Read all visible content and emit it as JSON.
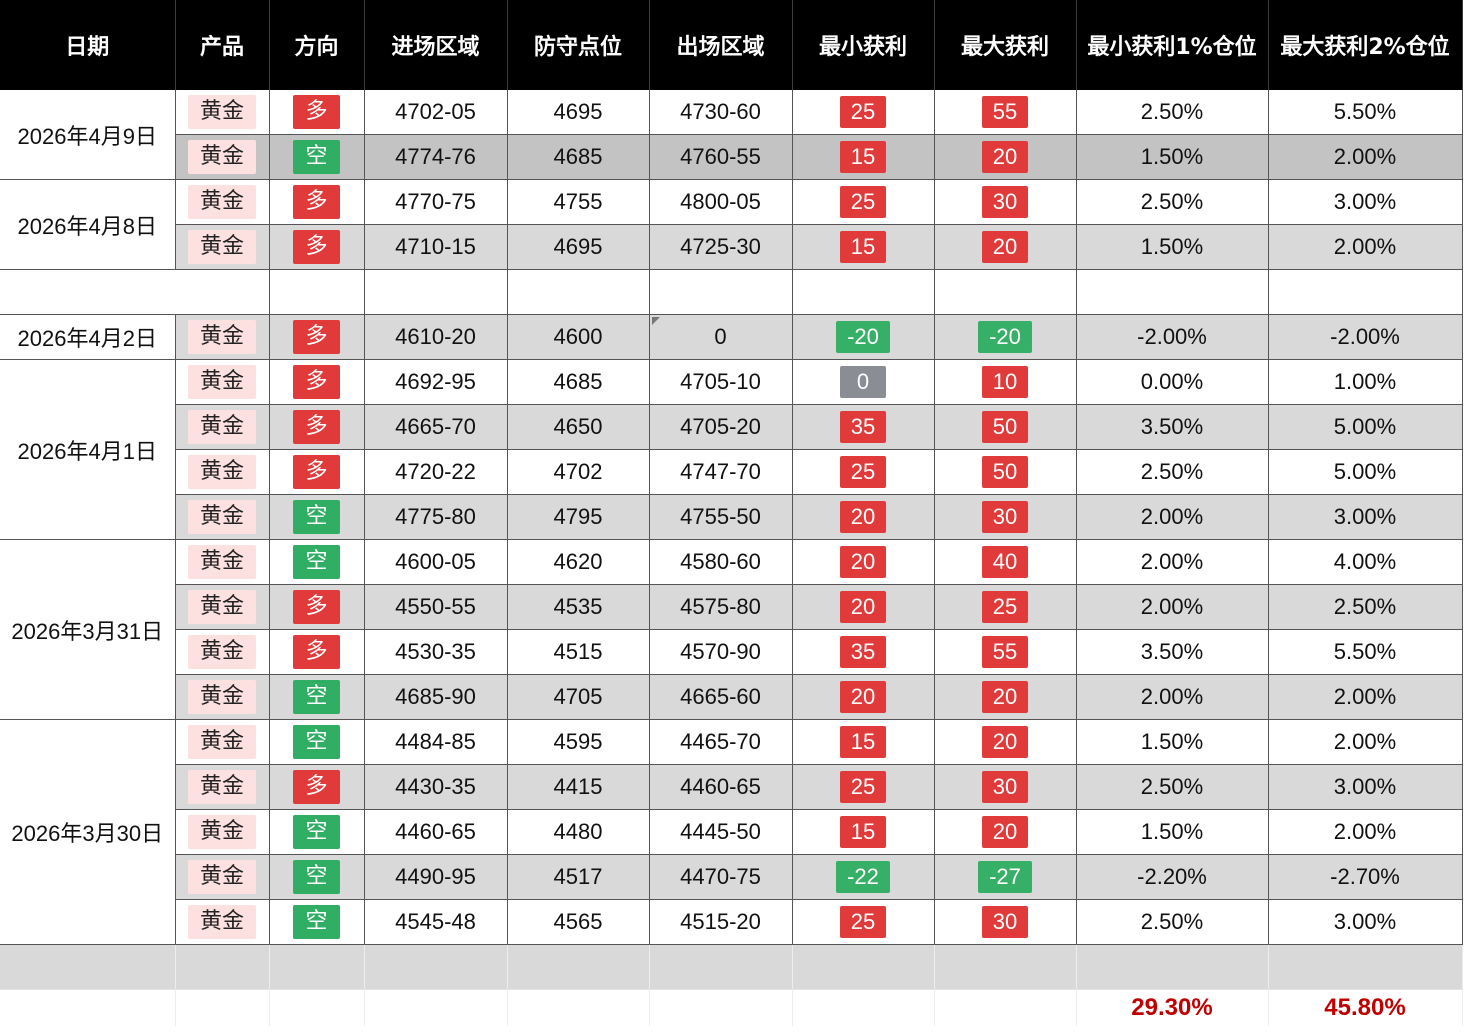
{
  "columns": [
    "日期",
    "产品",
    "方向",
    "进场区域",
    "防守点位",
    "出场区域",
    "最小获利",
    "最大获利",
    "最小获利1%仓位",
    "最大获利2%仓位"
  ],
  "colors": {
    "positive": "#e03a3a",
    "negative": "#36b066",
    "zero": "#8a8d94",
    "long": "#e03a3a",
    "short": "#2fae64",
    "product_bg": "#fde0e0",
    "total": "#c00000"
  },
  "groups": [
    {
      "date": "2026年4月9日",
      "rows": [
        {
          "product": "黄金",
          "direction": "多",
          "entry": "4702-05",
          "stop": "4695",
          "exit": "4730-60",
          "min": "25",
          "max": "55",
          "min_pct": "2.50%",
          "max_pct": "5.50%"
        },
        {
          "product": "黄金",
          "direction": "空",
          "entry": "4774-76",
          "stop": "4685",
          "exit": "4760-55",
          "min": "15",
          "max": "20",
          "min_pct": "1.50%",
          "max_pct": "2.00%"
        }
      ]
    },
    {
      "date": "2026年4月8日",
      "rows": [
        {
          "product": "黄金",
          "direction": "多",
          "entry": "4770-75",
          "stop": "4755",
          "exit": "4800-05",
          "min": "25",
          "max": "30",
          "min_pct": "2.50%",
          "max_pct": "3.00%"
        },
        {
          "product": "黄金",
          "direction": "多",
          "entry": "4710-15",
          "stop": "4695",
          "exit": "4725-30",
          "min": "15",
          "max": "20",
          "min_pct": "1.50%",
          "max_pct": "2.00%"
        }
      ]
    },
    {
      "date": "",
      "empty": true,
      "rows": []
    },
    {
      "date": "2026年4月2日",
      "rows": [
        {
          "product": "黄金",
          "direction": "多",
          "entry": "4610-20",
          "stop": "4600",
          "exit": "0",
          "min": "-20",
          "max": "-20",
          "min_pct": "-2.00%",
          "max_pct": "-2.00%"
        }
      ]
    },
    {
      "date": "2026年4月1日",
      "rows": [
        {
          "product": "黄金",
          "direction": "多",
          "entry": "4692-95",
          "stop": "4685",
          "exit": "4705-10",
          "min": "0",
          "max": "10",
          "min_pct": "0.00%",
          "max_pct": "1.00%"
        },
        {
          "product": "黄金",
          "direction": "多",
          "entry": "4665-70",
          "stop": "4650",
          "exit": "4705-20",
          "min": "35",
          "max": "50",
          "min_pct": "3.50%",
          "max_pct": "5.00%"
        },
        {
          "product": "黄金",
          "direction": "多",
          "entry": "4720-22",
          "stop": "4702",
          "exit": "4747-70",
          "min": "25",
          "max": "50",
          "min_pct": "2.50%",
          "max_pct": "5.00%"
        },
        {
          "product": "黄金",
          "direction": "空",
          "entry": "4775-80",
          "stop": "4795",
          "exit": "4755-50",
          "min": "20",
          "max": "30",
          "min_pct": "2.00%",
          "max_pct": "3.00%"
        }
      ]
    },
    {
      "date": "2026年3月31日",
      "rows": [
        {
          "product": "黄金",
          "direction": "空",
          "entry": "4600-05",
          "stop": "4620",
          "exit": "4580-60",
          "min": "20",
          "max": "40",
          "min_pct": "2.00%",
          "max_pct": "4.00%"
        },
        {
          "product": "黄金",
          "direction": "多",
          "entry": "4550-55",
          "stop": "4535",
          "exit": "4575-80",
          "min": "20",
          "max": "25",
          "min_pct": "2.00%",
          "max_pct": "2.50%"
        },
        {
          "product": "黄金",
          "direction": "多",
          "entry": "4530-35",
          "stop": "4515",
          "exit": "4570-90",
          "min": "35",
          "max": "55",
          "min_pct": "3.50%",
          "max_pct": "5.50%"
        },
        {
          "product": "黄金",
          "direction": "空",
          "entry": "4685-90",
          "stop": "4705",
          "exit": "4665-60",
          "min": "20",
          "max": "20",
          "min_pct": "2.00%",
          "max_pct": "2.00%"
        }
      ]
    },
    {
      "date": "2026年3月30日",
      "rows": [
        {
          "product": "黄金",
          "direction": "空",
          "entry": "4484-85",
          "stop": "4595",
          "exit": "4465-70",
          "min": "15",
          "max": "20",
          "min_pct": "1.50%",
          "max_pct": "2.00%"
        },
        {
          "product": "黄金",
          "direction": "多",
          "entry": "4430-35",
          "stop": "4415",
          "exit": "4460-65",
          "min": "25",
          "max": "30",
          "min_pct": "2.50%",
          "max_pct": "3.00%"
        },
        {
          "product": "黄金",
          "direction": "空",
          "entry": "4460-65",
          "stop": "4480",
          "exit": "4445-50",
          "min": "15",
          "max": "20",
          "min_pct": "1.50%",
          "max_pct": "2.00%"
        },
        {
          "product": "黄金",
          "direction": "空",
          "entry": "4490-95",
          "stop": "4517",
          "exit": "4470-75",
          "min": "-22",
          "max": "-27",
          "min_pct": "-2.20%",
          "max_pct": "-2.70%"
        },
        {
          "product": "黄金",
          "direction": "空",
          "entry": "4545-48",
          "stop": "4565",
          "exit": "4515-20",
          "min": "25",
          "max": "30",
          "min_pct": "2.50%",
          "max_pct": "3.00%"
        }
      ]
    }
  ],
  "totals": {
    "min_pct": "29.30%",
    "max_pct": "45.80%"
  }
}
